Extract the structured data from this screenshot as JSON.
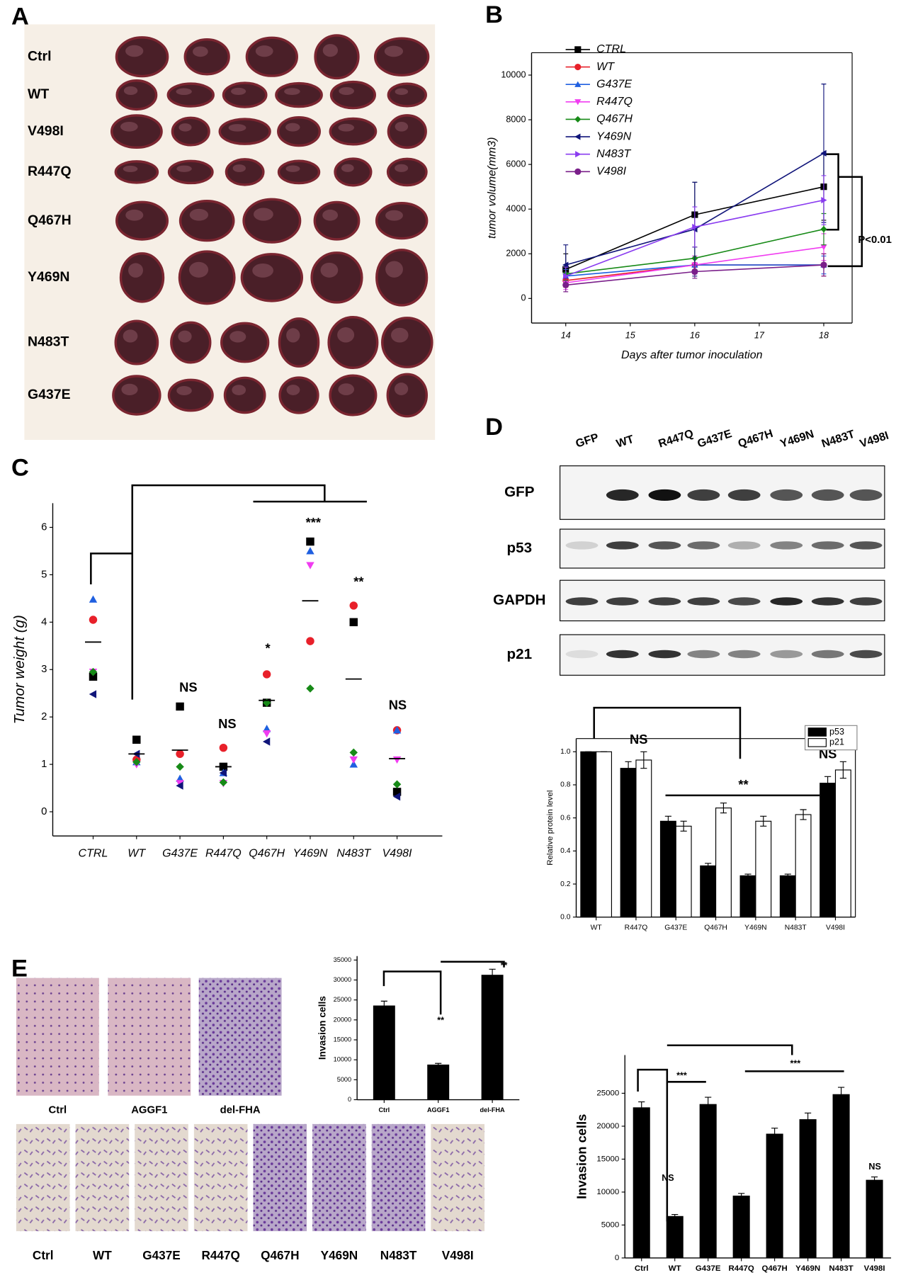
{
  "panel_labels": [
    "A",
    "B",
    "C",
    "D",
    "E"
  ],
  "tumor_photo": {
    "row_labels": [
      "Ctrl",
      "WT",
      "V498I",
      "R447Q",
      "Q467H",
      "Y469N",
      "N483T",
      "G437E"
    ]
  },
  "western_blot": {
    "lane_labels": [
      "GFP",
      "WT",
      "R447Q",
      "G437E",
      "Q467H",
      "Y469N",
      "N483T",
      "V498I"
    ],
    "row_labels": [
      "GFP",
      "p53",
      "GAPDH",
      "p21"
    ]
  },
  "invasion_photos": {
    "top_labels": [
      "Ctrl",
      "AGGF1",
      "del-FHA"
    ],
    "bottom_labels": [
      "Ctrl",
      "WT",
      "G437E",
      "R447Q",
      "Q467H",
      "Y469N",
      "N483T",
      "V498I"
    ]
  },
  "chart_data": [
    {
      "type": "line",
      "x": [
        14,
        16,
        18
      ],
      "xlim": [
        13.47,
        18.44
      ],
      "xticks": [
        14,
        15,
        16,
        17,
        18
      ],
      "ylim": [
        -1100,
        11000
      ],
      "yticks": [
        0,
        2000,
        4000,
        6000,
        8000,
        10000
      ],
      "xlabel": "Days after tumor inoculation",
      "ylabel": "tumor volume(mm3)",
      "legend": "top-left",
      "annotations": [
        {
          "text": "P<0.01"
        }
      ],
      "series": [
        {
          "name": "CTRL",
          "color": "#000000",
          "marker": "square",
          "values": [
            1300,
            3750,
            5000
          ],
          "errors": [
            700,
            1450,
            1500
          ]
        },
        {
          "name": "WT",
          "color": "#e8202a",
          "marker": "circle",
          "values": [
            800,
            1500,
            1500
          ],
          "errors": [
            300,
            400,
            500
          ]
        },
        {
          "name": "G437E",
          "color": "#1f5fe0",
          "marker": "triangle-up",
          "values": [
            1000,
            1500,
            1500
          ],
          "errors": [
            300,
            400,
            400
          ]
        },
        {
          "name": "R447Q",
          "color": "#f03cf0",
          "marker": "triangle-down",
          "values": [
            700,
            1500,
            2300
          ],
          "errors": [
            300,
            400,
            600
          ]
        },
        {
          "name": "Q467H",
          "color": "#178a17",
          "marker": "diamond",
          "values": [
            1100,
            1800,
            3100
          ],
          "errors": [
            300,
            500,
            700
          ]
        },
        {
          "name": "Y469N",
          "color": "#10157a",
          "marker": "triangle-left",
          "values": [
            1500,
            3100,
            6500
          ],
          "errors": [
            900,
            2100,
            3100
          ]
        },
        {
          "name": "N483T",
          "color": "#8a3cf0",
          "marker": "triangle-right",
          "values": [
            1000,
            3200,
            4400
          ],
          "errors": [
            400,
            900,
            1100
          ]
        },
        {
          "name": "V498I",
          "color": "#7a1f8a",
          "marker": "circle",
          "values": [
            600,
            1200,
            1500
          ],
          "errors": [
            300,
            300,
            500
          ]
        }
      ]
    },
    {
      "type": "scatter",
      "categories": [
        "CTRL",
        "WT",
        "G437E",
        "R447Q",
        "Q467H",
        "Y469N",
        "N483T",
        "V498I"
      ],
      "ylim": [
        -0.51,
        6.51
      ],
      "yticks": [
        0,
        1,
        2,
        3,
        4,
        5,
        6
      ],
      "ylabel": "Tumor weight (g)",
      "means": [
        3.58,
        1.22,
        1.3,
        0.95,
        2.35,
        4.45,
        2.8,
        1.12
      ],
      "annotations": [
        {
          "text": "NS"
        },
        {
          "text": "NS"
        },
        {
          "text": "*"
        },
        {
          "text": "***"
        },
        {
          "text": "**"
        },
        {
          "text": "NS"
        }
      ],
      "series": [
        {
          "color": "#000000",
          "marker": "square",
          "values": [
            2.85,
            1.52,
            2.22,
            0.95,
            2.3,
            5.7,
            4.0,
            0.42
          ]
        },
        {
          "color": "#e8202a",
          "marker": "circle",
          "values": [
            4.05,
            1.1,
            1.22,
            1.35,
            2.9,
            3.6,
            4.35,
            1.72
          ]
        },
        {
          "color": "#1f5fe0",
          "marker": "triangle-up",
          "values": [
            4.48,
            1.05,
            0.7,
            0.82,
            1.75,
            5.5,
            1.0,
            1.72
          ]
        },
        {
          "color": "#f03cf0",
          "marker": "triangle-down",
          "values": [
            2.95,
            1.0,
            0.6,
            0.6,
            1.65,
            5.2,
            1.1,
            1.1
          ]
        },
        {
          "color": "#178a17",
          "marker": "diamond",
          "values": [
            2.95,
            1.05,
            0.95,
            0.62,
            2.3,
            2.6,
            1.25,
            0.58
          ]
        },
        {
          "color": "#10157a",
          "marker": "triangle-left",
          "values": [
            2.48,
            1.22,
            0.55,
            0.82,
            1.48,
            null,
            null,
            0.32
          ]
        }
      ]
    },
    {
      "type": "bar",
      "categories": [
        "WT",
        "R447Q",
        "G437E",
        "Q467H",
        "Y469N",
        "N483T",
        "V498I"
      ],
      "ylim": [
        0,
        1.08
      ],
      "yticks": [
        {
          "value": 0,
          "label": "0.0"
        },
        {
          "value": 0.2,
          "label": "0.2"
        },
        {
          "value": 0.4,
          "label": "0.4"
        },
        {
          "value": 0.6,
          "label": "0.6"
        },
        {
          "value": 0.8,
          "label": "0.8"
        },
        {
          "value": 1,
          "label": "1.0"
        }
      ],
      "ylabel": "Relative protein level",
      "legend": "top-right",
      "annotations": [
        {
          "text": "NS"
        },
        {
          "text": "**"
        },
        {
          "text": "NS"
        }
      ],
      "series": [
        {
          "name": "p53",
          "color": "#000000",
          "values": [
            1.0,
            0.9,
            0.58,
            0.31,
            0.25,
            0.25,
            0.81
          ],
          "errors": [
            0,
            0.04,
            0.03,
            0.015,
            0.01,
            0.01,
            0.04
          ]
        },
        {
          "name": "p21",
          "color": "#ffffff",
          "values": [
            1.0,
            0.95,
            0.55,
            0.66,
            0.58,
            0.62,
            0.89
          ],
          "errors": [
            0,
            0.05,
            0.03,
            0.03,
            0.03,
            0.03,
            0.05
          ]
        }
      ]
    },
    {
      "type": "bar",
      "categories": [
        "Ctrl",
        "AGGF1",
        "del-FHA"
      ],
      "ylim": [
        0,
        36000
      ],
      "yticks": [
        0,
        5000,
        10000,
        15000,
        20000,
        25000,
        30000,
        35000
      ],
      "ylabel": "Invasion cells",
      "annotations": [
        {
          "text": "**"
        },
        {
          "text": "**"
        }
      ],
      "series": [
        {
          "color": "#000000",
          "values": [
            23500,
            8700,
            31200
          ],
          "errors": [
            1200,
            400,
            1500
          ]
        }
      ]
    },
    {
      "type": "bar",
      "categories": [
        "Ctrl",
        "WT",
        "G437E",
        "R447Q",
        "Q467H",
        "Y469N",
        "N483T",
        "V498I"
      ],
      "ylim": [
        0,
        30800
      ],
      "yticks": [
        0,
        5000,
        10000,
        15000,
        20000,
        25000
      ],
      "ylabel": "Invasion cells",
      "annotations": [
        {
          "text": "***"
        },
        {
          "text": "***"
        },
        {
          "text": "NS"
        },
        {
          "text": "NS"
        }
      ],
      "series": [
        {
          "color": "#000000",
          "values": [
            22800,
            6300,
            23300,
            9400,
            18800,
            21000,
            24800,
            11800
          ],
          "errors": [
            900,
            300,
            1100,
            400,
            900,
            1000,
            1100,
            500
          ]
        }
      ]
    }
  ]
}
